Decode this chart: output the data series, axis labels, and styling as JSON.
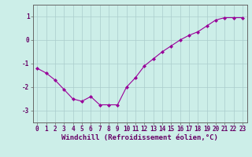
{
  "x": [
    0,
    1,
    2,
    3,
    4,
    5,
    6,
    7,
    8,
    9,
    10,
    11,
    12,
    13,
    14,
    15,
    16,
    17,
    18,
    19,
    20,
    21,
    22,
    23
  ],
  "y": [
    -1.2,
    -1.4,
    -1.7,
    -2.1,
    -2.5,
    -2.6,
    -2.4,
    -2.75,
    -2.75,
    -2.75,
    -2.0,
    -1.6,
    -1.1,
    -0.8,
    -0.5,
    -0.25,
    0.0,
    0.2,
    0.35,
    0.6,
    0.85,
    0.95,
    0.95,
    0.95
  ],
  "line_color": "#990099",
  "marker": "D",
  "marker_size": 2.0,
  "background_color": "#cceee8",
  "grid_color": "#aacccc",
  "xlabel": "Windchill (Refroidissement éolien,°C)",
  "xlim": [
    -0.5,
    23.5
  ],
  "ylim": [
    -3.5,
    1.5
  ],
  "yticks": [
    -3,
    -2,
    -1,
    0,
    1
  ],
  "xticks": [
    0,
    1,
    2,
    3,
    4,
    5,
    6,
    7,
    8,
    9,
    10,
    11,
    12,
    13,
    14,
    15,
    16,
    17,
    18,
    19,
    20,
    21,
    22,
    23
  ],
  "tick_label_fontsize": 5.5,
  "xlabel_fontsize": 6.5,
  "axis_color": "#660066",
  "spine_color": "#666666"
}
